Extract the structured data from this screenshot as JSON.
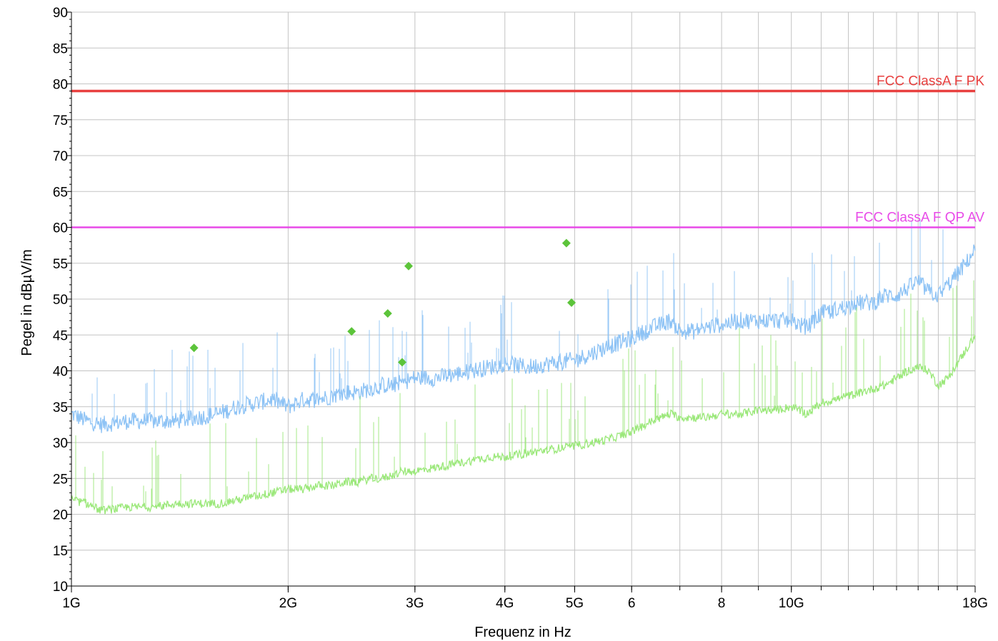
{
  "chart_data": {
    "type": "line",
    "xlabel": "Frequenz in Hz",
    "ylabel": "Pegel in dBµV/m",
    "x_scale": "log",
    "xlim_hz": [
      1000000000,
      18000000000
    ],
    "ylim": [
      10,
      90
    ],
    "grid": true,
    "y_ticks": [
      10,
      15,
      20,
      25,
      30,
      35,
      40,
      45,
      50,
      55,
      60,
      65,
      70,
      75,
      80,
      85,
      90
    ],
    "x_ticks": [
      {
        "hz": 1000000000,
        "label": "1G"
      },
      {
        "hz": 2000000000,
        "label": "2G"
      },
      {
        "hz": 3000000000,
        "label": "3G"
      },
      {
        "hz": 4000000000,
        "label": "4G"
      },
      {
        "hz": 5000000000,
        "label": "5G"
      },
      {
        "hz": 6000000000,
        "label": "6"
      },
      {
        "hz": 8000000000,
        "label": "8"
      },
      {
        "hz": 10000000000,
        "label": "10G"
      },
      {
        "hz": 18000000000,
        "label": "18G"
      }
    ],
    "limit_lines": [
      {
        "name": "FCC ClassA F PK",
        "value": 79,
        "color": "#e8403f"
      },
      {
        "name": "FCC ClassA F QP  AV",
        "value": 60,
        "color": "#e84ae8"
      }
    ],
    "series": [
      {
        "color": "#8ec3f5",
        "x_ghz": [
          1.0,
          1.05,
          1.1,
          1.2,
          1.3,
          1.4,
          1.5,
          1.6,
          1.7,
          1.8,
          1.9,
          2.0,
          2.1,
          2.2,
          2.3,
          2.4,
          2.5,
          2.6,
          2.7,
          2.8,
          2.9,
          3.0,
          3.2,
          3.4,
          3.6,
          3.8,
          4.0,
          4.3,
          4.6,
          5.0,
          5.3,
          5.6,
          6.0,
          6.4,
          6.8,
          7.0,
          7.3,
          7.6,
          8.0,
          8.5,
          9.0,
          9.5,
          10.0,
          10.5,
          11.0,
          11.5,
          12.0,
          12.5,
          13.0,
          13.5,
          14.0,
          14.5,
          15.0,
          15.5,
          16.0,
          16.5,
          17.0,
          17.5,
          18.0
        ],
        "values": [
          34,
          33,
          32.5,
          33,
          33,
          33,
          33.5,
          34,
          35,
          35.5,
          36,
          35,
          36,
          36,
          36.5,
          37,
          37,
          37.5,
          38,
          38,
          38.5,
          39,
          39,
          39.5,
          40,
          40.5,
          41,
          40.5,
          41,
          41.5,
          42.5,
          43.5,
          44.5,
          46,
          47,
          45.5,
          45.5,
          46,
          46.5,
          47,
          47,
          47,
          47,
          46,
          48,
          48.5,
          49,
          49.5,
          49.5,
          50.5,
          50.5,
          51.5,
          52.5,
          51,
          50.5,
          52,
          53.5,
          55,
          57
        ]
      },
      {
        "color": "#9be87a",
        "x_ghz": [
          1.0,
          1.05,
          1.1,
          1.2,
          1.3,
          1.4,
          1.5,
          1.6,
          1.7,
          1.8,
          1.9,
          2.0,
          2.1,
          2.2,
          2.3,
          2.4,
          2.5,
          2.6,
          2.7,
          2.8,
          2.9,
          3.0,
          3.2,
          3.4,
          3.6,
          3.8,
          4.0,
          4.3,
          4.6,
          5.0,
          5.3,
          5.6,
          6.0,
          6.4,
          6.8,
          7.0,
          7.3,
          7.6,
          8.0,
          8.5,
          9.0,
          9.5,
          10.0,
          10.5,
          11.0,
          11.5,
          12.0,
          12.5,
          13.0,
          13.5,
          14.0,
          14.5,
          15.0,
          15.5,
          16.0,
          16.5,
          17.0,
          17.5,
          18.0
        ],
        "values": [
          22,
          21.5,
          20.5,
          21,
          21,
          21.5,
          21.5,
          21.5,
          22,
          22.5,
          23,
          23.5,
          23.5,
          24,
          24,
          24.5,
          24.5,
          25,
          25,
          25.5,
          26,
          26,
          26.5,
          27,
          27.5,
          28,
          28,
          28.5,
          29,
          29.5,
          30,
          30.5,
          31.5,
          33,
          34,
          33.5,
          33.5,
          33.5,
          34,
          34,
          34.5,
          34.5,
          35,
          34,
          35.5,
          36,
          36.5,
          37,
          37.5,
          38,
          39,
          40,
          40.5,
          40,
          38,
          39,
          41,
          43,
          45
        ]
      }
    ],
    "peak_markers": {
      "color": "#5cc43a",
      "points": [
        {
          "x_ghz": 1.48,
          "y": 43.2
        },
        {
          "x_ghz": 2.45,
          "y": 45.5
        },
        {
          "x_ghz": 2.75,
          "y": 48.0
        },
        {
          "x_ghz": 2.88,
          "y": 41.2
        },
        {
          "x_ghz": 2.94,
          "y": 54.6
        },
        {
          "x_ghz": 4.87,
          "y": 57.8
        },
        {
          "x_ghz": 4.95,
          "y": 49.5
        }
      ]
    }
  }
}
